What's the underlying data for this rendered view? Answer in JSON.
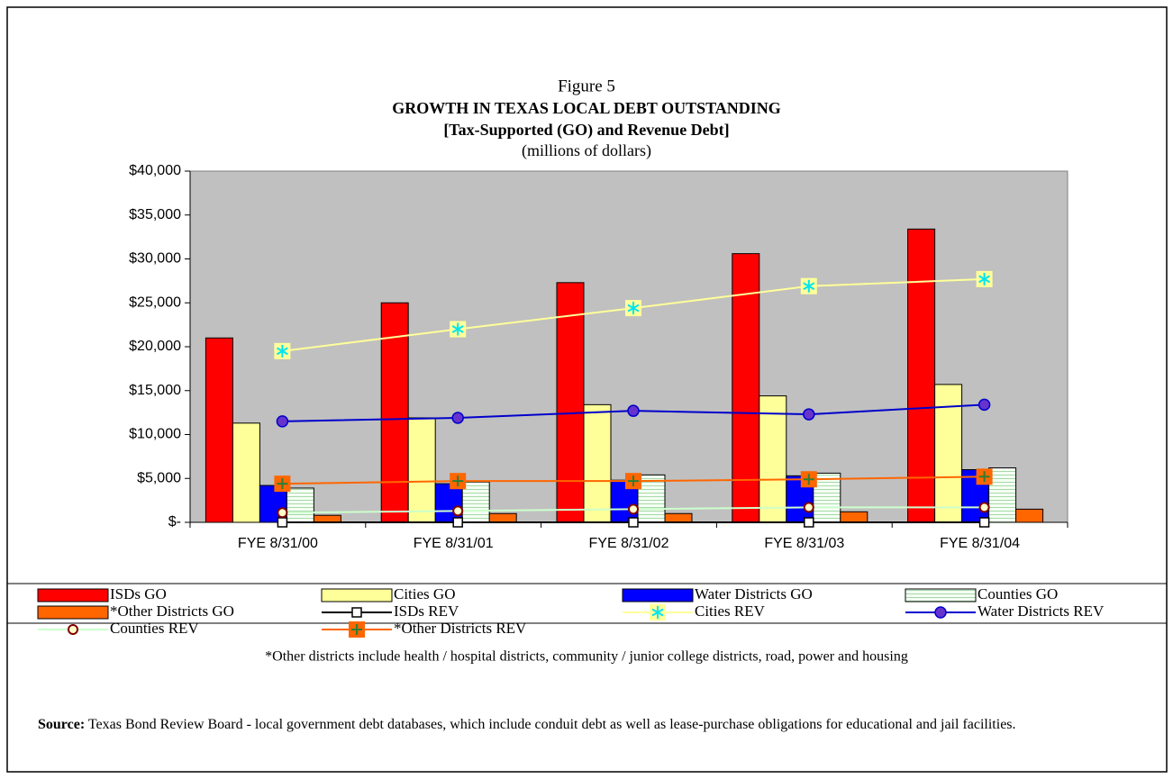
{
  "chart_data": {
    "type": "bar",
    "title": "Figure 5",
    "subtitle": [
      "GROWTH IN TEXAS LOCAL DEBT OUTSTANDING",
      "[Tax-Supported (GO) and Revenue Debt]"
    ],
    "units": "(millions of dollars)",
    "categories": [
      "FYE 8/31/00",
      "FYE 8/31/01",
      "FYE 8/31/02",
      "FYE 8/31/03",
      "FYE 8/31/04"
    ],
    "ylim": [
      0,
      40000
    ],
    "yticks": [
      {
        "value": 0,
        "label": "$-"
      },
      {
        "value": 5000,
        "label": "$5,000"
      },
      {
        "value": 10000,
        "label": "$10,000"
      },
      {
        "value": 15000,
        "label": "$15,000"
      },
      {
        "value": 20000,
        "label": "$20,000"
      },
      {
        "value": 25000,
        "label": "$25,000"
      },
      {
        "value": 30000,
        "label": "$30,000"
      },
      {
        "value": 35000,
        "label": "$35,000"
      },
      {
        "value": 40000,
        "label": "$40,000"
      }
    ],
    "series": [
      {
        "name": "ISDs GO",
        "type": "bar",
        "color": "#ff0000",
        "values": [
          21000,
          25000,
          27300,
          30600,
          33400
        ]
      },
      {
        "name": "Cities GO",
        "type": "bar",
        "color": "#ffff99",
        "values": [
          11300,
          11900,
          13400,
          14400,
          15700
        ]
      },
      {
        "name": "Water Districts GO",
        "type": "bar",
        "color": "#0000ff",
        "values": [
          4200,
          4400,
          4800,
          5300,
          6000
        ]
      },
      {
        "name": "Counties GO",
        "type": "bar",
        "color": "#f4fff4",
        "values": [
          3900,
          4600,
          5400,
          5600,
          6200
        ]
      },
      {
        "name": "*Other Districts GO",
        "type": "bar",
        "color": "#ff6600",
        "values": [
          800,
          1000,
          1000,
          1200,
          1500
        ]
      },
      {
        "name": "ISDs REV",
        "type": "line",
        "marker": "square",
        "color": "#000000",
        "values": [
          0,
          0,
          0,
          0,
          0
        ]
      },
      {
        "name": "Cities REV",
        "type": "line",
        "marker": "asterisk",
        "color": "#ffff99",
        "values": [
          19500,
          22000,
          24400,
          26900,
          27700
        ]
      },
      {
        "name": "Water Districts REV",
        "type": "line",
        "marker": "circle",
        "color": "#0000cc",
        "values": [
          11500,
          11900,
          12700,
          12300,
          13400
        ]
      },
      {
        "name": "Counties REV",
        "type": "line",
        "marker": "ring",
        "color": "#ccffcc",
        "values": [
          1100,
          1300,
          1500,
          1700,
          1700
        ]
      },
      {
        "name": "*Other Districts REV",
        "type": "line",
        "marker": "plus",
        "color": "#ff6600",
        "values": [
          4400,
          4700,
          4700,
          4900,
          5200
        ]
      }
    ],
    "footnote": "*Other districts include health / hospital districts, community / junior college districts, road, power and housing",
    "source_label": "Source:",
    "source_text": "Texas Bond Review Board - local government debt databases, which include conduit debt as well as lease-purchase obligations for educational and jail facilities."
  }
}
